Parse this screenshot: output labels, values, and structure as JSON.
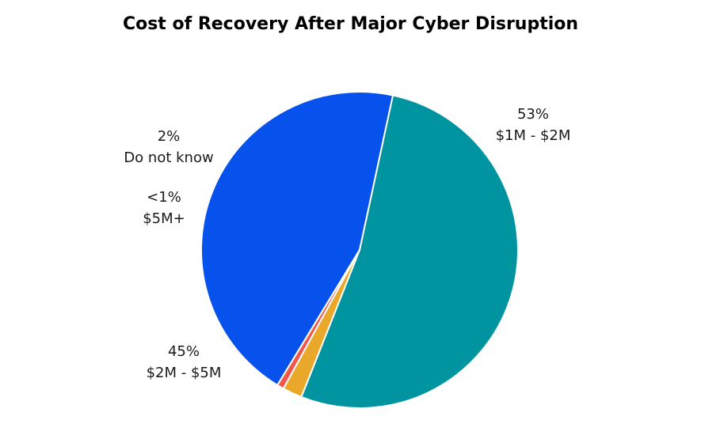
{
  "chart_data": {
    "type": "pie",
    "title": "Cost of Recovery After Major Cyber Disruption",
    "slices": [
      {
        "category": "$1M - $2M",
        "value": 53,
        "value_label": "53%",
        "color": "#0094a0"
      },
      {
        "category": "$2M - $5M",
        "value": 45,
        "value_label": "45%",
        "color": "#0752ec"
      },
      {
        "category": "$5M+",
        "value": 0.7,
        "value_label": "<1%",
        "color": "#f0574a"
      },
      {
        "category": "Do not know",
        "value": 2,
        "value_label": "2%",
        "color": "#e9a82a"
      }
    ],
    "legend": "none",
    "labels": "outside"
  }
}
